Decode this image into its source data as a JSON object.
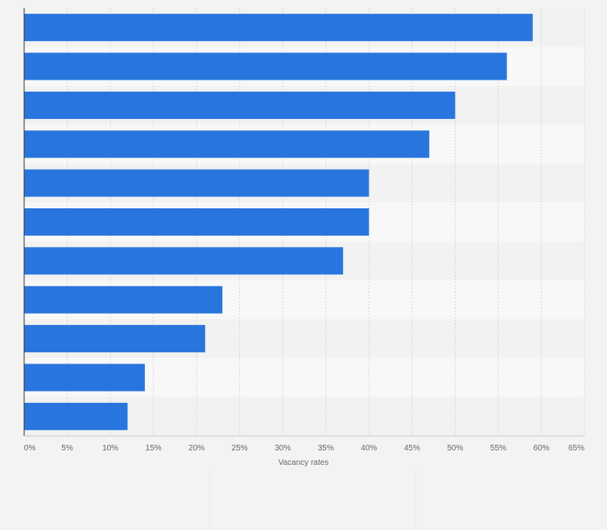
{
  "chart_data": {
    "type": "bar",
    "orientation": "horizontal",
    "xlabel": "Vacancy rates",
    "ylabel": "",
    "xlim": [
      0,
      65
    ],
    "x_ticks": [
      "0%",
      "5%",
      "10%",
      "15%",
      "20%",
      "25%",
      "30%",
      "35%",
      "40%",
      "45%",
      "50%",
      "55%",
      "60%",
      "65%"
    ],
    "grid": true,
    "categories": [
      "",
      "",
      "",
      "",
      "",
      "",
      "",
      "",
      "",
      "",
      ""
    ],
    "values": [
      59,
      56,
      50,
      47,
      40,
      40,
      37,
      23,
      21,
      14,
      12
    ],
    "bar_color": "#2876dd",
    "band_colors": [
      "#f2f2f2",
      "#f8f8f8"
    ],
    "background_color": "#f3f3f3"
  }
}
